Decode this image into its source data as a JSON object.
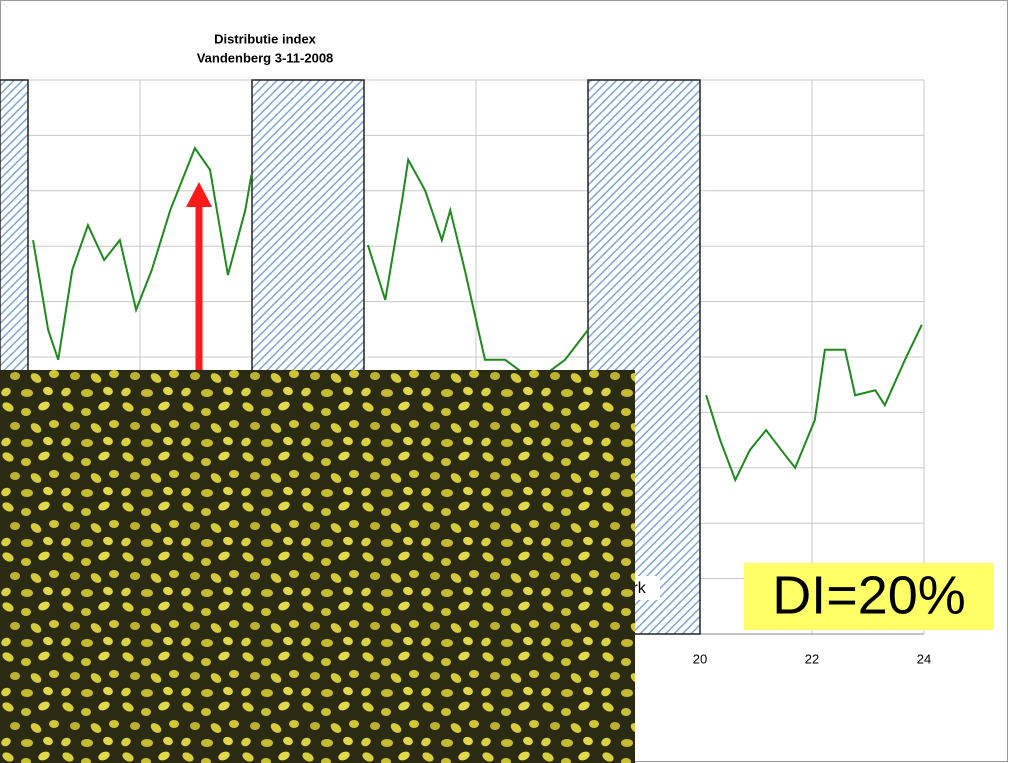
{
  "chart_data": {
    "type": "line",
    "title": "Distributie index",
    "subtitle": "Vandenberg 3-11-2008",
    "x": [
      8.09,
      8.36,
      8.54,
      8.79,
      9.07,
      9.36,
      9.64,
      9.93,
      10.21,
      10.54,
      10.98,
      11.25,
      11.57,
      11.88,
      11.99,
      13,
      14.07,
      14.38,
      14.68,
      14.79,
      15.09,
      15.39,
      15.54,
      15.8,
      16.16,
      16.52,
      16.88,
      17.23,
      17.59,
      18.0,
      19,
      20.11,
      20.36,
      20.63,
      20.89,
      21.18,
      21.52,
      21.7,
      22.05,
      22.23,
      22.59,
      22.77,
      23.13,
      23.3,
      23.66,
      23.96
    ],
    "series": [
      {
        "color": "#1e8a1e",
        "values": [
          71.1,
          54.9,
          49.5,
          65.7,
          73.8,
          67.5,
          71.1,
          58.5,
          65.7,
          76.5,
          87.7,
          83.8,
          64.8,
          76.5,
          82.9,
          null,
          70.2,
          60.3,
          78.3,
          85.6,
          80.1,
          71.1,
          76.5,
          65.7,
          49.5,
          49.5,
          46.8,
          46.8,
          49.5,
          54.9,
          null,
          43.1,
          35.0,
          27.8,
          33.2,
          36.8,
          32.3,
          30.0,
          38.6,
          51.3,
          51.3,
          43.1,
          44.0,
          41.3,
          49.5,
          55.8
        ]
      }
    ],
    "dark_periods": [
      [
        7.5,
        8
      ],
      [
        12,
        14
      ],
      [
        18,
        20
      ]
    ],
    "dark_label": "Dark",
    "xlim": [
      7.5,
      24
    ],
    "xticks": [
      8,
      10,
      12,
      14,
      16,
      18,
      20,
      22,
      24
    ],
    "ylim": [
      0,
      100
    ],
    "yticks": [
      0,
      10,
      20,
      30,
      40,
      50,
      60,
      70,
      80,
      90,
      100
    ],
    "grid": true,
    "annotation": "DI=20%"
  }
}
